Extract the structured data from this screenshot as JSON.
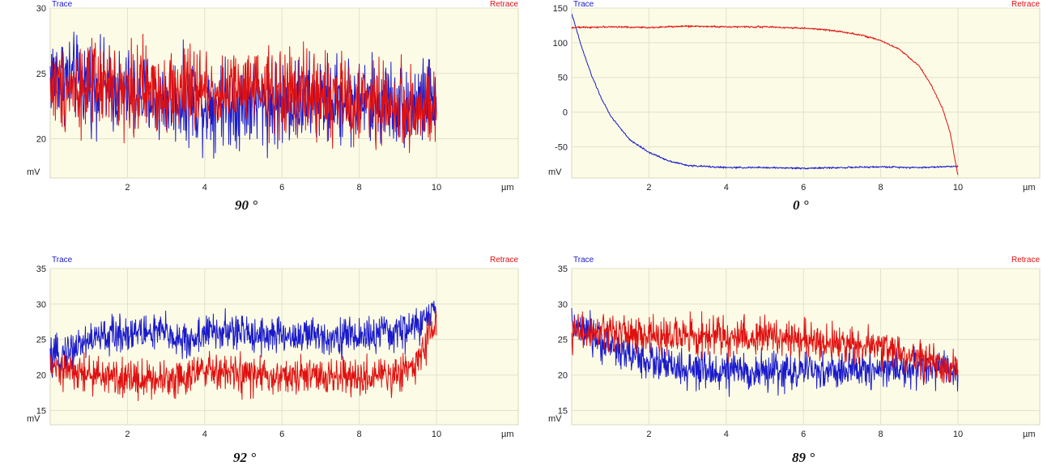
{
  "chart_data": [
    {
      "type": "line",
      "caption": "90 °",
      "ylabel": "mV",
      "xlabel": "µm",
      "xlim": [
        0,
        10
      ],
      "ylim": [
        17,
        30
      ],
      "yticks": [
        20,
        25,
        30
      ],
      "xticks": [
        2,
        4,
        6,
        8,
        10
      ],
      "grid": true,
      "legend": [
        "Trace",
        "Retrace"
      ],
      "noise": 3.2,
      "series": [
        {
          "name": "Trace",
          "color": "#1a1acc",
          "x": [
            0,
            1,
            2,
            3,
            4,
            5,
            6,
            7,
            8,
            9,
            10
          ],
          "y": [
            25,
            24.3,
            23.5,
            23,
            22.8,
            22.7,
            22.8,
            23,
            22.9,
            22.7,
            22.8
          ]
        },
        {
          "name": "Retrace",
          "color": "#e01010",
          "x": [
            0,
            1,
            2,
            3,
            4,
            5,
            6,
            7,
            8,
            9,
            10
          ],
          "y": [
            24,
            24,
            23.8,
            23.7,
            23.7,
            23.6,
            23.5,
            23.2,
            22.8,
            22.5,
            22
          ]
        }
      ]
    },
    {
      "type": "line",
      "caption": "0 °",
      "ylabel": "mV",
      "xlabel": "µm",
      "xlim": [
        0,
        10
      ],
      "ylim": [
        -95,
        150
      ],
      "yticks": [
        -50,
        0,
        50,
        100,
        150
      ],
      "xticks": [
        2,
        4,
        6,
        8,
        10
      ],
      "grid": true,
      "legend": [
        "Trace",
        "Retrace"
      ],
      "noise": 1.2,
      "series": [
        {
          "name": "Trace",
          "color": "#1a1acc",
          "x": [
            0,
            0.25,
            0.5,
            0.75,
            1,
            1.5,
            2,
            2.5,
            3,
            4,
            5,
            6,
            7,
            8,
            9,
            10
          ],
          "y": [
            142,
            95,
            55,
            22,
            -5,
            -40,
            -58,
            -70,
            -77,
            -80,
            -80,
            -81,
            -80,
            -79,
            -80,
            -78
          ]
        },
        {
          "name": "Retrace",
          "color": "#e01010",
          "x": [
            0,
            1,
            2,
            3,
            4,
            5,
            6,
            6.5,
            7,
            7.5,
            8,
            8.5,
            9,
            9.3,
            9.6,
            9.8,
            10
          ],
          "y": [
            122,
            123,
            122,
            124,
            123,
            123,
            121,
            119,
            116,
            111,
            103,
            90,
            66,
            40,
            5,
            -30,
            -92
          ]
        }
      ]
    },
    {
      "type": "line",
      "caption": "92 °",
      "ylabel": "mV",
      "xlabel": "µm",
      "xlim": [
        0,
        10
      ],
      "ylim": [
        13,
        35
      ],
      "yticks": [
        15,
        20,
        25,
        30,
        35
      ],
      "xticks": [
        2,
        4,
        6,
        8,
        10
      ],
      "grid": true,
      "legend": [
        "Trace",
        "Retrace"
      ],
      "noise": 2.6,
      "series": [
        {
          "name": "Trace",
          "color": "#1a1acc",
          "x": [
            0,
            1,
            2,
            3,
            3.5,
            4,
            5,
            6,
            7,
            8,
            9,
            9.5,
            10
          ],
          "y": [
            22,
            25,
            26,
            26,
            24.5,
            26,
            26,
            25.5,
            25.5,
            25.5,
            26,
            27,
            29
          ]
        },
        {
          "name": "Retrace",
          "color": "#e01010",
          "x": [
            0,
            1,
            2,
            3,
            4,
            5,
            6,
            7,
            8,
            9,
            9.5,
            10
          ],
          "y": [
            21,
            20,
            19.5,
            19.5,
            20.5,
            20,
            19.5,
            20,
            19.5,
            20,
            22,
            28
          ]
        }
      ]
    },
    {
      "type": "line",
      "caption": "89 °",
      "ylabel": "mV",
      "xlabel": "µm",
      "xlim": [
        0,
        10
      ],
      "ylim": [
        13,
        35
      ],
      "yticks": [
        15,
        20,
        25,
        30,
        35
      ],
      "xticks": [
        2,
        4,
        6,
        8,
        10
      ],
      "grid": true,
      "legend": [
        "Trace",
        "Retrace"
      ],
      "noise": 2.6,
      "series": [
        {
          "name": "Trace",
          "color": "#1a1acc",
          "x": [
            0,
            1,
            2,
            3,
            4,
            5,
            6,
            7,
            8,
            9,
            10
          ],
          "y": [
            27,
            24,
            22,
            20.5,
            20.5,
            20.5,
            20.5,
            20.5,
            21,
            21,
            20.5
          ]
        },
        {
          "name": "Retrace",
          "color": "#e01010",
          "x": [
            0,
            1,
            2,
            3,
            4,
            5,
            6,
            7,
            8,
            9,
            10
          ],
          "y": [
            26,
            26,
            25.5,
            25.5,
            25.5,
            25.5,
            25,
            24.5,
            24,
            22.5,
            20.5
          ]
        }
      ]
    }
  ]
}
